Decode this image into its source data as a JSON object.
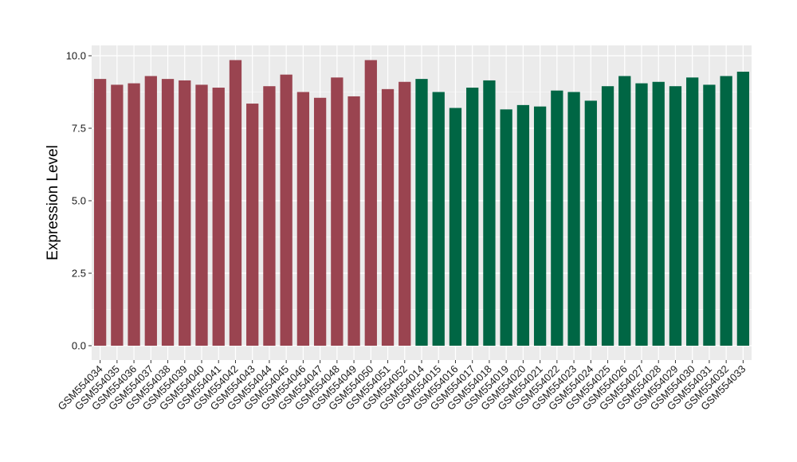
{
  "chart_data": {
    "type": "bar",
    "title": "",
    "xlabel": "",
    "ylabel": "Expression Level",
    "ylim": [
      0,
      10
    ],
    "yticks": [
      0,
      2.5,
      5,
      7.5,
      10
    ],
    "ytick_labels": [
      "0.0",
      "2.5",
      "5.0",
      "7.5",
      "10.0"
    ],
    "grid": true,
    "legend": "none",
    "colors": {
      "panel": "#EBEBEB",
      "grid": "#FFFFFF",
      "group_a": "#9A4450",
      "group_b": "#006644"
    },
    "categories": [
      "GSM554034",
      "GSM554035",
      "GSM554036",
      "GSM554037",
      "GSM554038",
      "GSM554039",
      "GSM554040",
      "GSM554041",
      "GSM554042",
      "GSM554043",
      "GSM554044",
      "GSM554045",
      "GSM554046",
      "GSM554047",
      "GSM554048",
      "GSM554049",
      "GSM554050",
      "GSM554051",
      "GSM554052",
      "GSM554014",
      "GSM554015",
      "GSM554016",
      "GSM554017",
      "GSM554018",
      "GSM554019",
      "GSM554020",
      "GSM554021",
      "GSM554022",
      "GSM554023",
      "GSM554024",
      "GSM554025",
      "GSM554026",
      "GSM554027",
      "GSM554028",
      "GSM554029",
      "GSM554030",
      "GSM554031",
      "GSM554032",
      "GSM554033"
    ],
    "values": [
      9.2,
      9.0,
      9.05,
      9.3,
      9.2,
      9.15,
      9.0,
      8.9,
      9.85,
      8.35,
      8.95,
      9.35,
      8.75,
      8.55,
      9.25,
      8.6,
      9.85,
      8.85,
      9.1,
      9.2,
      8.75,
      8.2,
      8.9,
      9.15,
      8.15,
      8.3,
      8.25,
      8.8,
      8.75,
      8.45,
      8.95,
      9.3,
      9.05,
      9.1,
      8.95,
      9.25,
      9.0,
      9.3,
      9.45
    ],
    "groups": [
      "a",
      "a",
      "a",
      "a",
      "a",
      "a",
      "a",
      "a",
      "a",
      "a",
      "a",
      "a",
      "a",
      "a",
      "a",
      "a",
      "a",
      "a",
      "a",
      "b",
      "b",
      "b",
      "b",
      "b",
      "b",
      "b",
      "b",
      "b",
      "b",
      "b",
      "b",
      "b",
      "b",
      "b",
      "b",
      "b",
      "b",
      "b",
      "b"
    ]
  }
}
